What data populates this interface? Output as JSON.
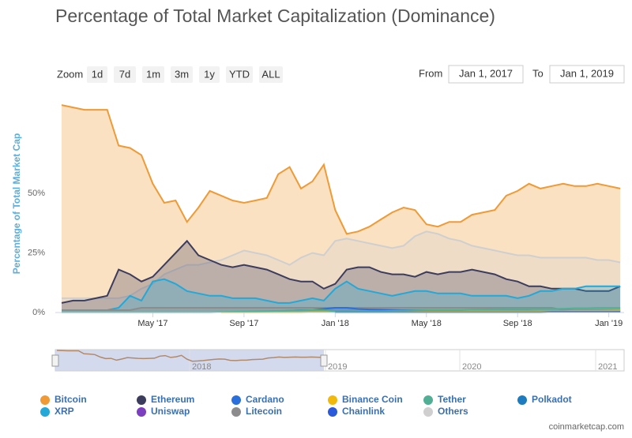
{
  "chart_data": {
    "type": "area",
    "title": "Percentage of Total Market Capitalization (Dominance)",
    "y_label": "Percentage of Total Market Cap",
    "zoom_label": "Zoom",
    "zoom_buttons": [
      "1d",
      "7d",
      "1m",
      "3m",
      "1y",
      "YTD",
      "ALL"
    ],
    "from_label": "From",
    "from_value": "Jan 1, 2017",
    "to_label": "To",
    "to_value": "Jan 1, 2019",
    "source": "coinmarketcap.com",
    "navigator_labels": [
      "2018",
      "2019",
      "2020",
      "2021"
    ],
    "categories": [
      null,
      null,
      null,
      null,
      null,
      null,
      null,
      null,
      "May '17",
      null,
      null,
      null,
      null,
      null,
      null,
      null,
      "Sep '17",
      null,
      null,
      null,
      null,
      null,
      null,
      null,
      "Jan '18",
      null,
      null,
      null,
      null,
      null,
      null,
      null,
      "May '18",
      null,
      null,
      null,
      null,
      null,
      null,
      null,
      "Sep '18",
      null,
      null,
      null,
      null,
      null,
      null,
      null,
      "Jan '19",
      null
    ],
    "ylim": [
      0,
      91
    ],
    "yticks": [
      {
        "value": 0,
        "label": "0%"
      },
      {
        "value": 25,
        "label": "25%"
      },
      {
        "value": 50,
        "label": "50%"
      }
    ],
    "grid": false,
    "series": [
      {
        "name": "Bitcoin",
        "color": "#f09a36",
        "values": [
          87,
          86,
          85,
          85,
          85,
          70,
          69,
          66,
          54,
          46,
          47,
          38,
          44,
          51,
          49,
          47,
          46,
          47,
          48,
          58,
          61,
          52,
          55,
          62,
          43,
          33,
          34,
          36,
          39,
          42,
          44,
          43,
          37,
          36,
          38,
          38,
          41,
          42,
          43,
          49,
          51,
          54,
          52,
          53,
          54,
          53,
          53,
          54,
          53,
          52
        ]
      },
      {
        "name": "Ethereum",
        "color": "#3c3c5d",
        "values": [
          4,
          5,
          5,
          6,
          7,
          18,
          16,
          13,
          15,
          20,
          25,
          30,
          24,
          22,
          20,
          19,
          20,
          19,
          18,
          16,
          14,
          13,
          13,
          10,
          12,
          18,
          19,
          19,
          17,
          16,
          16,
          15,
          17,
          16,
          17,
          17,
          18,
          17,
          16,
          14,
          13,
          11,
          11,
          10,
          10,
          10,
          9,
          9,
          9,
          11
        ]
      },
      {
        "name": "Cardano",
        "color": "#2a6fdb",
        "values": [
          null,
          null,
          null,
          null,
          null,
          null,
          null,
          null,
          null,
          null,
          null,
          null,
          null,
          null,
          null,
          null,
          null,
          null,
          null,
          0.5,
          0.8,
          1,
          1,
          1.5,
          2,
          2,
          1.5,
          1.3,
          1.2,
          1.1,
          1,
          1,
          1,
          1,
          0.9,
          0.8,
          0.8,
          0.7,
          0.7,
          0.7,
          0.7,
          0.7,
          0.6,
          0.6,
          0.6,
          0.6,
          0.6,
          0.5,
          0.5,
          0.5
        ]
      },
      {
        "name": "Binance Coin",
        "color": "#f0b90b",
        "values": [
          null,
          null,
          null,
          null,
          null,
          null,
          null,
          null,
          null,
          null,
          null,
          null,
          null,
          null,
          0.1,
          0.1,
          0.1,
          0.1,
          0.1,
          0.1,
          0.1,
          0.1,
          0.2,
          0.2,
          0.3,
          0.3,
          0.4,
          0.4,
          0.5,
          0.5,
          0.5,
          0.6,
          0.6,
          0.6,
          0.6,
          0.6,
          0.6,
          0.6,
          0.6,
          0.6,
          0.6,
          0.6,
          0.6,
          0.6,
          0.6,
          0.7,
          0.7,
          0.7,
          0.8,
          0.9
        ]
      },
      {
        "name": "Tether",
        "color": "#50af95",
        "values": [
          0.1,
          0.1,
          0.1,
          0.1,
          0.1,
          0.1,
          0.1,
          0.1,
          0.1,
          0.1,
          0.1,
          0.1,
          0.1,
          0.1,
          0.2,
          0.3,
          0.4,
          0.5,
          0.6,
          0.7,
          0.8,
          0.9,
          1,
          1,
          0.5,
          0.4,
          0.4,
          0.5,
          0.6,
          0.7,
          0.8,
          0.9,
          1,
          1,
          1,
          1,
          1.2,
          1.3,
          1.4,
          1.5,
          1.5,
          1.5,
          1.5,
          1.5,
          1.6,
          1.8,
          1.8,
          1.9,
          1.9,
          1.9
        ]
      },
      {
        "name": "Polkadot",
        "color": "#1d7bbf",
        "values": [
          null,
          null,
          null,
          null,
          null,
          null,
          null,
          null,
          null,
          null,
          null,
          null,
          null,
          null,
          null,
          null,
          null,
          null,
          null,
          null,
          null,
          null,
          null,
          null,
          null,
          null,
          null,
          null,
          null,
          null,
          null,
          null,
          null,
          null,
          null,
          null,
          null,
          null,
          null,
          null,
          null,
          null,
          null,
          null,
          null,
          null,
          null,
          null,
          null,
          null
        ]
      },
      {
        "name": "XRP",
        "color": "#23a8d8",
        "values": [
          1,
          1,
          1,
          1,
          1,
          2,
          7,
          5,
          13,
          14,
          12,
          9,
          8,
          7,
          7,
          6,
          6,
          6,
          5,
          4,
          4,
          5,
          6,
          5,
          10,
          13,
          10,
          9,
          8,
          7,
          8,
          9,
          9,
          8,
          8,
          8,
          7,
          7,
          7,
          7,
          6,
          7,
          9,
          9,
          10,
          10,
          11,
          11,
          11,
          11
        ]
      },
      {
        "name": "Uniswap",
        "color": "#7b3fbf",
        "values": [
          null,
          null,
          null,
          null,
          null,
          null,
          null,
          null,
          null,
          null,
          null,
          null,
          null,
          null,
          null,
          null,
          null,
          null,
          null,
          null,
          null,
          null,
          null,
          null,
          null,
          null,
          null,
          null,
          null,
          null,
          null,
          null,
          null,
          null,
          null,
          null,
          null,
          null,
          null,
          null,
          null,
          null,
          null,
          null,
          null,
          null,
          null,
          null,
          null,
          null
        ]
      },
      {
        "name": "Litecoin",
        "color": "#8c8c8c",
        "values": [
          1,
          1,
          1,
          1,
          1,
          1,
          1,
          2,
          2,
          2,
          2,
          2,
          2,
          2,
          2,
          2,
          2,
          2,
          2,
          2,
          2,
          2,
          2,
          2,
          2,
          2,
          2,
          2,
          2,
          2,
          2,
          2,
          2,
          2,
          2,
          2,
          2,
          2,
          2,
          2,
          2,
          2,
          2,
          2,
          1,
          1,
          1,
          1,
          1,
          1
        ]
      },
      {
        "name": "Chainlink",
        "color": "#2a5ada",
        "values": [
          null,
          null,
          null,
          null,
          null,
          null,
          null,
          null,
          null,
          null,
          null,
          null,
          null,
          null,
          null,
          null,
          null,
          null,
          null,
          null,
          null,
          null,
          null,
          null,
          0.1,
          0.1,
          0.1,
          0.1,
          0.1,
          0.1,
          0.1,
          0.1,
          0.1,
          0.1,
          0.1,
          0.1,
          0.1,
          0.1,
          0.1,
          0.1,
          0.1,
          0.1,
          0.1,
          0.2,
          0.2,
          0.2,
          0.2,
          0.2,
          0.2,
          0.2
        ]
      },
      {
        "name": "Others",
        "color": "#cfcfcf",
        "values": [
          6,
          6,
          6,
          6,
          6,
          6,
          7,
          10,
          12,
          16,
          18,
          20,
          20,
          21,
          22,
          24,
          26,
          25,
          24,
          22,
          20,
          23,
          25,
          24,
          30,
          31,
          30,
          29,
          28,
          27,
          28,
          32,
          34,
          33,
          31,
          30,
          28,
          27,
          26,
          25,
          24,
          24,
          23,
          23,
          23,
          23,
          23,
          22,
          22,
          21
        ]
      }
    ]
  }
}
